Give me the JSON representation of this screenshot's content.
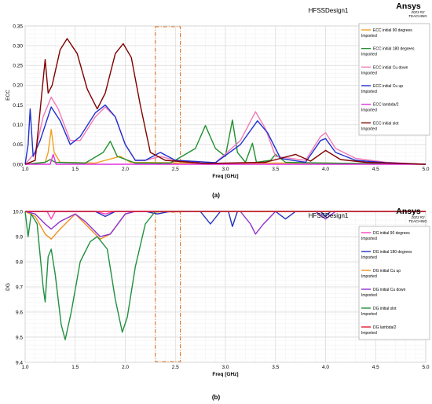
{
  "brand": {
    "design_label": "HFSSDesign1",
    "logo": "Ansys",
    "version": "2023 R2",
    "edition": "TEACHING"
  },
  "colors": {
    "bg_plot": "#ffffff",
    "grid": "#d8d8d8",
    "box": "#e07020"
  },
  "chart_data": [
    {
      "type": "line",
      "caption": "(a)",
      "xlabel": "Freq [GHz]",
      "ylabel": "ECC",
      "xlim": [
        1.0,
        5.0
      ],
      "ylim": [
        0.0,
        0.35
      ],
      "xticks": [
        "1.0",
        "1.5",
        "2.0",
        "2.5",
        "3.0",
        "3.5",
        "4.0",
        "4.5",
        "5.0"
      ],
      "yticks": [
        "0.00",
        "0.05",
        "0.10",
        "0.15",
        "0.20",
        "0.25",
        "0.30",
        "0.35"
      ],
      "highlight_band": [
        2.3,
        2.55
      ],
      "grid": true,
      "legend_position": "right",
      "series": [
        {
          "name": "ECC initial 90 degrees",
          "sub": "Imported",
          "color": "#f0a020",
          "points": [
            [
              1.0,
              0.0
            ],
            [
              1.2,
              0.005
            ],
            [
              1.23,
              0.03
            ],
            [
              1.26,
              0.088
            ],
            [
              1.29,
              0.03
            ],
            [
              1.35,
              0.005
            ],
            [
              1.7,
              0.003
            ],
            [
              1.8,
              0.01
            ],
            [
              1.95,
              0.02
            ],
            [
              2.05,
              0.005
            ],
            [
              2.4,
              0.004
            ],
            [
              2.8,
              0.002
            ],
            [
              3.3,
              0.003
            ],
            [
              4.0,
              0.003
            ],
            [
              5.0,
              0.0
            ]
          ]
        },
        {
          "name": "ECC initial 180 degrees",
          "sub": "Imported",
          "color": "#209030",
          "points": [
            [
              1.0,
              0.0
            ],
            [
              1.2,
              0.005
            ],
            [
              1.25,
              0.012
            ],
            [
              1.3,
              0.005
            ],
            [
              1.6,
              0.003
            ],
            [
              1.78,
              0.03
            ],
            [
              1.85,
              0.058
            ],
            [
              1.92,
              0.02
            ],
            [
              2.1,
              0.003
            ],
            [
              2.45,
              0.003
            ],
            [
              2.7,
              0.04
            ],
            [
              2.8,
              0.098
            ],
            [
              2.9,
              0.04
            ],
            [
              3.0,
              0.02
            ],
            [
              3.07,
              0.112
            ],
            [
              3.12,
              0.03
            ],
            [
              3.2,
              0.005
            ],
            [
              3.27,
              0.053
            ],
            [
              3.31,
              0.005
            ],
            [
              3.45,
              0.01
            ],
            [
              3.5,
              0.025
            ],
            [
              3.6,
              0.005
            ],
            [
              4.0,
              0.003
            ],
            [
              5.0,
              0.0
            ]
          ]
        },
        {
          "name": "ECC initial Cu down",
          "sub": "Imported",
          "color": "#f07ab8",
          "points": [
            [
              1.0,
              0.0
            ],
            [
              1.1,
              0.03
            ],
            [
              1.18,
              0.12
            ],
            [
              1.26,
              0.17
            ],
            [
              1.33,
              0.14
            ],
            [
              1.45,
              0.06
            ],
            [
              1.55,
              0.06
            ],
            [
              1.7,
              0.12
            ],
            [
              1.8,
              0.145
            ],
            [
              1.9,
              0.12
            ],
            [
              2.0,
              0.05
            ],
            [
              2.1,
              0.01
            ],
            [
              2.2,
              0.01
            ],
            [
              2.35,
              0.02
            ],
            [
              2.5,
              0.01
            ],
            [
              2.9,
              0.004
            ],
            [
              3.15,
              0.06
            ],
            [
              3.3,
              0.133
            ],
            [
              3.4,
              0.09
            ],
            [
              3.5,
              0.02
            ],
            [
              3.8,
              0.01
            ],
            [
              3.95,
              0.07
            ],
            [
              4.0,
              0.08
            ],
            [
              4.1,
              0.04
            ],
            [
              4.3,
              0.015
            ],
            [
              4.6,
              0.005
            ],
            [
              5.0,
              0.0
            ]
          ]
        },
        {
          "name": "ECC initial Cu up",
          "sub": "Imported",
          "color": "#2030d0",
          "points": [
            [
              1.0,
              0.0
            ],
            [
              1.03,
              0.05
            ],
            [
              1.05,
              0.14
            ],
            [
              1.08,
              0.02
            ],
            [
              1.15,
              0.06
            ],
            [
              1.26,
              0.145
            ],
            [
              1.35,
              0.11
            ],
            [
              1.45,
              0.05
            ],
            [
              1.55,
              0.07
            ],
            [
              1.7,
              0.13
            ],
            [
              1.8,
              0.15
            ],
            [
              1.9,
              0.12
            ],
            [
              2.0,
              0.05
            ],
            [
              2.1,
              0.01
            ],
            [
              2.2,
              0.01
            ],
            [
              2.35,
              0.03
            ],
            [
              2.5,
              0.01
            ],
            [
              2.9,
              0.004
            ],
            [
              3.15,
              0.05
            ],
            [
              3.32,
              0.11
            ],
            [
              3.42,
              0.08
            ],
            [
              3.55,
              0.015
            ],
            [
              3.8,
              0.005
            ],
            [
              3.95,
              0.06
            ],
            [
              4.0,
              0.065
            ],
            [
              4.1,
              0.03
            ],
            [
              4.3,
              0.01
            ],
            [
              4.6,
              0.004
            ],
            [
              5.0,
              0.0
            ]
          ]
        },
        {
          "name": "ECC lambda/2",
          "sub": "Imported",
          "color": "#e030e0",
          "points": [
            [
              1.0,
              0.0
            ],
            [
              1.25,
              0.0
            ],
            [
              1.28,
              0.025
            ],
            [
              1.31,
              0.0
            ],
            [
              2.0,
              0.0
            ],
            [
              5.0,
              0.0
            ]
          ]
        },
        {
          "name": "ECC initial slot",
          "sub": "Imported",
          "color": "#800000",
          "points": [
            [
              1.0,
              0.0
            ],
            [
              1.1,
              0.01
            ],
            [
              1.2,
              0.265
            ],
            [
              1.23,
              0.18
            ],
            [
              1.27,
              0.2
            ],
            [
              1.35,
              0.29
            ],
            [
              1.42,
              0.318
            ],
            [
              1.52,
              0.28
            ],
            [
              1.62,
              0.19
            ],
            [
              1.72,
              0.14
            ],
            [
              1.8,
              0.18
            ],
            [
              1.9,
              0.28
            ],
            [
              1.98,
              0.305
            ],
            [
              2.06,
              0.27
            ],
            [
              2.15,
              0.15
            ],
            [
              2.25,
              0.03
            ],
            [
              2.4,
              0.01
            ],
            [
              2.8,
              0.002
            ],
            [
              3.4,
              0.005
            ],
            [
              3.7,
              0.025
            ],
            [
              3.85,
              0.008
            ],
            [
              4.0,
              0.035
            ],
            [
              4.15,
              0.012
            ],
            [
              4.4,
              0.005
            ],
            [
              5.0,
              0.0
            ]
          ]
        }
      ]
    },
    {
      "type": "line",
      "caption": "(b)",
      "xlabel": "Freq [GHz]",
      "ylabel": "DG",
      "xlim": [
        1.0,
        5.0
      ],
      "ylim": [
        9.4,
        10.0
      ],
      "xticks": [
        "1.0",
        "1.5",
        "2.0",
        "2.5",
        "3.0",
        "3.5",
        "4.0",
        "4.5",
        "5.0"
      ],
      "yticks": [
        "9.4",
        "9.5",
        "9.6",
        "9.7",
        "9.8",
        "9.9",
        "10.0"
      ],
      "highlight_band": [
        2.3,
        2.55
      ],
      "grid": true,
      "legend_position": "right",
      "series": [
        {
          "name": "DG initial 90 degrees",
          "sub": "Imported",
          "color": "#ff40c0",
          "points": [
            [
              1.0,
              10.0
            ],
            [
              1.22,
              10.0
            ],
            [
              1.26,
              9.97
            ],
            [
              1.3,
              10.0
            ],
            [
              1.7,
              10.0
            ],
            [
              1.8,
              9.99
            ],
            [
              1.9,
              10.0
            ],
            [
              5.0,
              10.0
            ]
          ]
        },
        {
          "name": "DG initial 180 degrees",
          "sub": "Imported",
          "color": "#2030c0",
          "points": [
            [
              1.0,
              10.0
            ],
            [
              1.7,
              10.0
            ],
            [
              1.8,
              9.98
            ],
            [
              1.9,
              10.0
            ],
            [
              2.2,
              10.0
            ],
            [
              2.32,
              9.99
            ],
            [
              2.45,
              10.0
            ],
            [
              2.75,
              10.0
            ],
            [
              2.85,
              9.95
            ],
            [
              2.95,
              10.0
            ],
            [
              3.03,
              10.0
            ],
            [
              3.07,
              9.94
            ],
            [
              3.12,
              10.0
            ],
            [
              3.5,
              10.0
            ],
            [
              3.6,
              9.97
            ],
            [
              3.7,
              10.0
            ],
            [
              3.95,
              10.0
            ],
            [
              4.0,
              9.98
            ],
            [
              4.05,
              10.0
            ],
            [
              5.0,
              10.0
            ]
          ]
        },
        {
          "name": "DG initial Cu up",
          "sub": "Imported",
          "color": "#f09020",
          "points": [
            [
              1.0,
              10.0
            ],
            [
              1.1,
              9.98
            ],
            [
              1.2,
              9.91
            ],
            [
              1.26,
              9.89
            ],
            [
              1.35,
              9.93
            ],
            [
              1.5,
              9.99
            ],
            [
              1.6,
              9.95
            ],
            [
              1.75,
              9.89
            ],
            [
              1.85,
              9.91
            ],
            [
              2.0,
              9.99
            ],
            [
              2.1,
              10.0
            ],
            [
              5.0,
              10.0
            ]
          ]
        },
        {
          "name": "DG initial Cu down",
          "sub": "Imported",
          "color": "#9030d0",
          "points": [
            [
              1.0,
              10.0
            ],
            [
              1.1,
              9.99
            ],
            [
              1.2,
              9.95
            ],
            [
              1.26,
              9.93
            ],
            [
              1.35,
              9.96
            ],
            [
              1.5,
              9.99
            ],
            [
              1.6,
              9.96
            ],
            [
              1.75,
              9.9
            ],
            [
              1.85,
              9.91
            ],
            [
              2.0,
              9.99
            ],
            [
              2.1,
              10.0
            ],
            [
              3.15,
              10.0
            ],
            [
              3.25,
              9.95
            ],
            [
              3.3,
              9.91
            ],
            [
              3.38,
              9.95
            ],
            [
              3.5,
              10.0
            ],
            [
              3.9,
              10.0
            ],
            [
              4.0,
              9.97
            ],
            [
              4.1,
              10.0
            ],
            [
              5.0,
              10.0
            ]
          ]
        },
        {
          "name": "DG initial slot",
          "sub": "Imported",
          "color": "#209040",
          "points": [
            [
              1.0,
              10.0
            ],
            [
              1.03,
              9.9
            ],
            [
              1.06,
              9.99
            ],
            [
              1.12,
              9.95
            ],
            [
              1.18,
              9.7
            ],
            [
              1.2,
              9.64
            ],
            [
              1.23,
              9.82
            ],
            [
              1.26,
              9.85
            ],
            [
              1.3,
              9.75
            ],
            [
              1.36,
              9.55
            ],
            [
              1.4,
              9.49
            ],
            [
              1.46,
              9.6
            ],
            [
              1.55,
              9.8
            ],
            [
              1.65,
              9.88
            ],
            [
              1.72,
              9.9
            ],
            [
              1.82,
              9.85
            ],
            [
              1.9,
              9.65
            ],
            [
              1.97,
              9.52
            ],
            [
              2.02,
              9.58
            ],
            [
              2.1,
              9.78
            ],
            [
              2.2,
              9.95
            ],
            [
              2.3,
              10.0
            ],
            [
              5.0,
              10.0
            ]
          ]
        },
        {
          "name": "DG lambda/2",
          "sub": "Imported",
          "color": "#e02030",
          "points": [
            [
              1.0,
              10.0
            ],
            [
              5.0,
              10.0
            ]
          ]
        }
      ]
    }
  ]
}
